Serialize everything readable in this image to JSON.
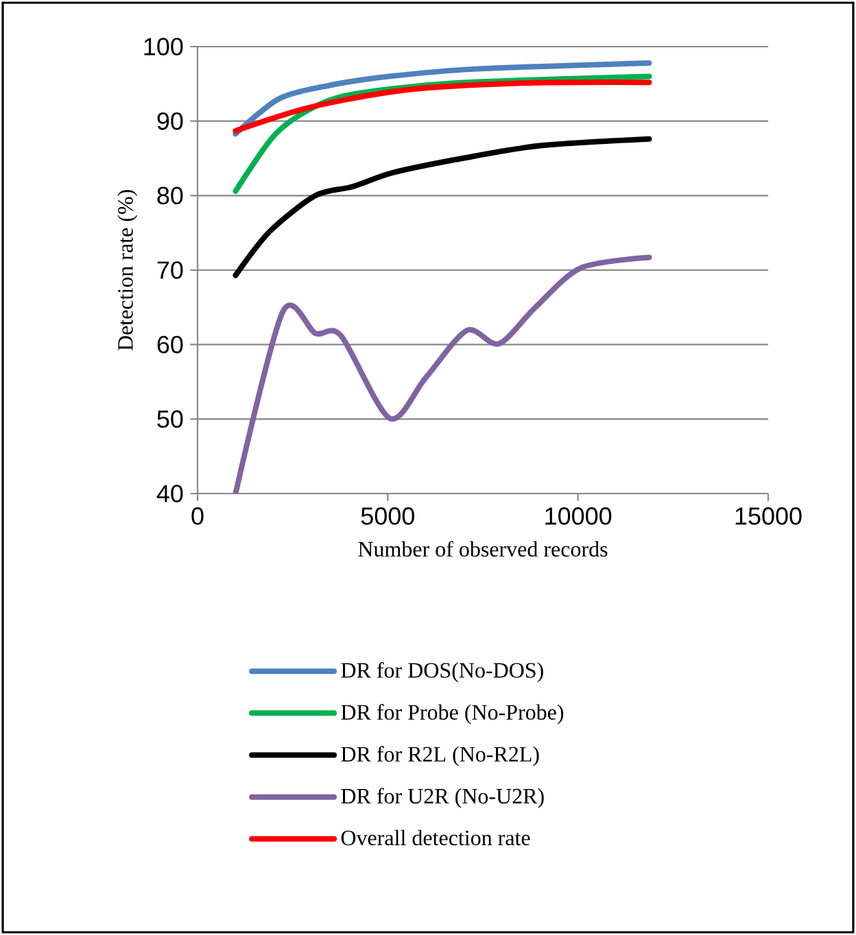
{
  "chart_data": {
    "type": "line",
    "xlabel": "Number of observed records",
    "ylabel": "Detection rate (%)",
    "xlim": [
      0,
      15000
    ],
    "xticks": [
      0,
      5000,
      10000,
      15000
    ],
    "ylim": [
      40,
      100
    ],
    "yticks": [
      40,
      50,
      60,
      70,
      80,
      90,
      100
    ],
    "grid": "y",
    "legend": "bottom",
    "series": [
      {
        "name": "DR  for DOS(No-DOS)",
        "color": "#4f81bd",
        "x": [
          1000,
          2140,
          3470,
          5030,
          7320,
          11870
        ],
        "values": [
          88.3,
          93,
          94.8,
          96,
          97,
          97.8
        ]
      },
      {
        "name": "DR  for Probe (No-Probe)",
        "color": "#00b050",
        "x": [
          1000,
          2020,
          2990,
          4070,
          6720,
          11870
        ],
        "values": [
          80.6,
          88.1,
          91.7,
          93.6,
          95.1,
          96
        ]
      },
      {
        "name": "DR  for R2L  (No-R2L)",
        "color": "#000000",
        "x": [
          1000,
          1900,
          3100,
          4070,
          5150,
          6960,
          9000,
          11870
        ],
        "values": [
          69.3,
          75.2,
          80,
          81.2,
          83.1,
          85,
          86.7,
          87.6
        ]
      },
      {
        "name": "DR  for U2R  (No-U2R)",
        "color": "#8064a2",
        "x": [
          1000,
          2240,
          3100,
          3770,
          5050,
          5990,
          7080,
          7920,
          8880,
          10080,
          11870
        ],
        "values": [
          40,
          64.4,
          61.5,
          61.2,
          50.1,
          55.5,
          61.9,
          60.1,
          65,
          70.3,
          71.7
        ]
      },
      {
        "name": "Overall detection rate",
        "color": "#ff0000",
        "x": [
          1000,
          2990,
          5510,
          8520,
          11870
        ],
        "values": [
          88.7,
          91.9,
          94.2,
          95.1,
          95.2
        ]
      }
    ]
  }
}
